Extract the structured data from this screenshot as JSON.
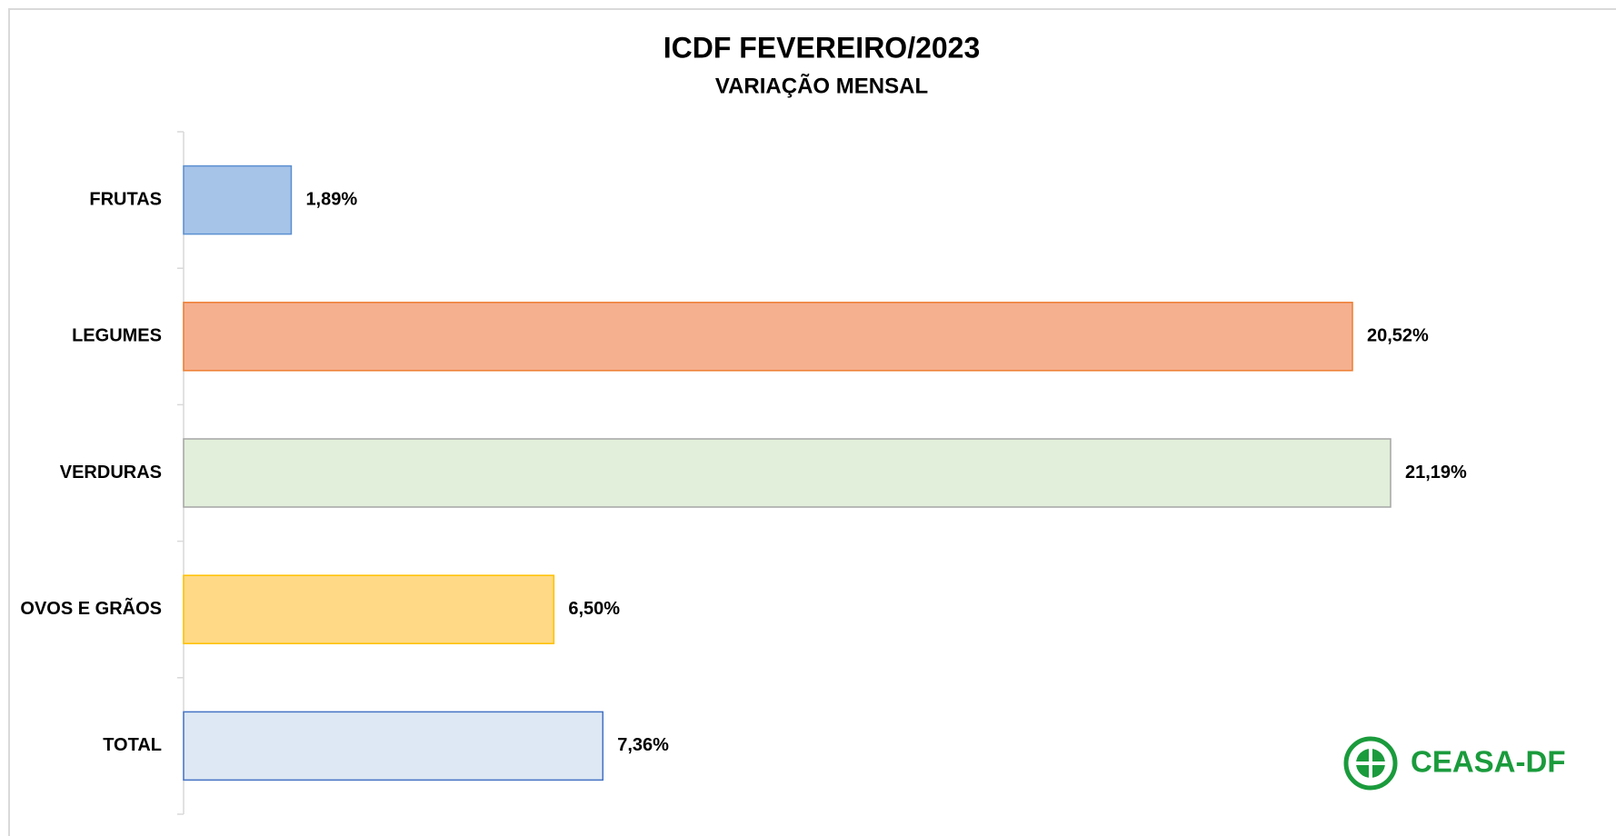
{
  "chart_data": {
    "type": "bar",
    "orientation": "horizontal",
    "title": "ICDF FEVEREIRO/2023",
    "subtitle": "VARIAÇÃO MENSAL",
    "categories": [
      "FRUTAS",
      "LEGUMES",
      "VERDURAS",
      "OVOS E GRÃOS",
      "TOTAL"
    ],
    "values": [
      1.89,
      20.52,
      21.19,
      6.5,
      7.36
    ],
    "value_labels": [
      "1,89%",
      "20,52%",
      "21,19%",
      "6,50%",
      "7,36%"
    ],
    "colors": [
      "#a6c3e8",
      "#f5b090",
      "#e2efda",
      "#ffd985",
      "#dde8f4"
    ],
    "border_colors": [
      "#5b8fd0",
      "#ed7d31",
      "#a5a5a5",
      "#ffc000",
      "#4472c4"
    ],
    "logo_text": "CEASA-DF"
  }
}
